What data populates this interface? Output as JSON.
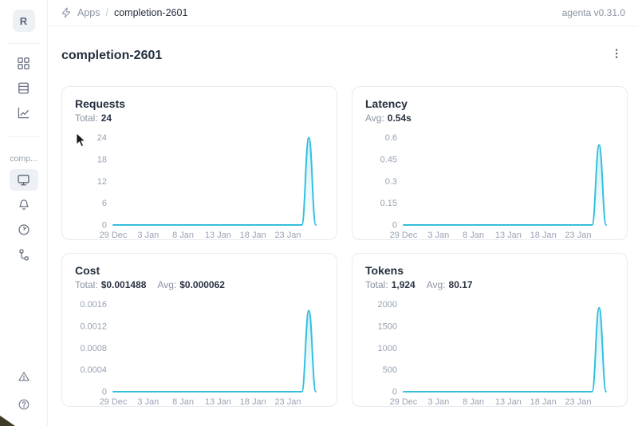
{
  "app": {
    "version_label": "agenta v0.31.0"
  },
  "topbar": {
    "breadcrumb": {
      "root": "Apps",
      "separator": "/",
      "current": "completion-2601"
    }
  },
  "sidebar": {
    "avatar_letter": "R",
    "project_label": "comp...",
    "nav_icons": [
      "apps-grid",
      "registry-list",
      "evaluations-chart"
    ],
    "project_icons": [
      "overview-monitor",
      "notifications-bell",
      "observability-gauge",
      "traces-tree"
    ],
    "footer_icons": [
      "alerts-triangle",
      "help-circle"
    ],
    "selected_icon": "overview-monitor"
  },
  "page": {
    "title": "completion-2601"
  },
  "colors": {
    "line": "#35bfdd",
    "area_top": "rgba(53,191,221,0.26)",
    "text_dark": "#243040",
    "text_gray": "#98a2b3",
    "border": "#e7eaee"
  },
  "chart_data": [
    {
      "type": "area",
      "title": "Requests",
      "stats": [
        {
          "label": "Total:",
          "value": "24"
        }
      ],
      "x_tick_labels": [
        "29 Dec",
        "3 Jan",
        "8 Jan",
        "13 Jan",
        "18 Jan",
        "23 Jan"
      ],
      "x_tick_indices": [
        0,
        5,
        10,
        15,
        20,
        25
      ],
      "y_tick_values": [
        0,
        6,
        12,
        18,
        24
      ],
      "y_tick_labels": [
        "0",
        "6",
        "12",
        "18",
        "24"
      ],
      "ylim": [
        0,
        25
      ],
      "values": [
        0,
        0,
        0,
        0,
        0,
        0,
        0,
        0,
        0,
        0,
        0,
        0,
        0,
        0,
        0,
        0,
        0,
        0,
        0,
        0,
        0,
        0,
        0,
        0,
        0,
        0,
        0,
        0,
        24,
        0
      ]
    },
    {
      "type": "area",
      "title": "Latency",
      "stats": [
        {
          "label": "Avg:",
          "value": "0.54s"
        }
      ],
      "x_tick_labels": [
        "29 Dec",
        "3 Jan",
        "8 Jan",
        "13 Jan",
        "18 Jan",
        "23 Jan"
      ],
      "x_tick_indices": [
        0,
        5,
        10,
        15,
        20,
        25
      ],
      "y_tick_values": [
        0,
        0.15,
        0.3,
        0.45,
        0.6
      ],
      "y_tick_labels": [
        "0",
        "0.15",
        "0.3",
        "0.45",
        "0.6"
      ],
      "ylim": [
        0,
        0.625
      ],
      "values": [
        0,
        0,
        0,
        0,
        0,
        0,
        0,
        0,
        0,
        0,
        0,
        0,
        0,
        0,
        0,
        0,
        0,
        0,
        0,
        0,
        0,
        0,
        0,
        0,
        0,
        0,
        0,
        0,
        0.55,
        0
      ]
    },
    {
      "type": "area",
      "title": "Cost",
      "stats": [
        {
          "label": "Total:",
          "value": "$0.001488"
        },
        {
          "label": "Avg:",
          "value": "$0.000062"
        }
      ],
      "x_tick_labels": [
        "29 Dec",
        "3 Jan",
        "8 Jan",
        "13 Jan",
        "18 Jan",
        "23 Jan"
      ],
      "x_tick_indices": [
        0,
        5,
        10,
        15,
        20,
        25
      ],
      "y_tick_values": [
        0,
        0.0004,
        0.0008,
        0.0012,
        0.0016
      ],
      "y_tick_labels": [
        "0",
        "0.0004",
        "0.0008",
        "0.0012",
        "0.0016"
      ],
      "ylim": [
        0,
        0.001667
      ],
      "values": [
        0,
        0,
        0,
        0,
        0,
        0,
        0,
        0,
        0,
        0,
        0,
        0,
        0,
        0,
        0,
        0,
        0,
        0,
        0,
        0,
        0,
        0,
        0,
        0,
        0,
        0,
        0,
        0,
        0.00149,
        0
      ]
    },
    {
      "type": "area",
      "title": "Tokens",
      "stats": [
        {
          "label": "Total:",
          "value": "1,924"
        },
        {
          "label": "Avg:",
          "value": "80.17"
        }
      ],
      "x_tick_labels": [
        "29 Dec",
        "3 Jan",
        "8 Jan",
        "13 Jan",
        "18 Jan",
        "23 Jan"
      ],
      "x_tick_indices": [
        0,
        5,
        10,
        15,
        20,
        25
      ],
      "y_tick_values": [
        0,
        500,
        1000,
        1500,
        2000
      ],
      "y_tick_labels": [
        "0",
        "500",
        "1000",
        "1500",
        "2000"
      ],
      "ylim": [
        0,
        2083
      ],
      "values": [
        0,
        0,
        0,
        0,
        0,
        0,
        0,
        0,
        0,
        0,
        0,
        0,
        0,
        0,
        0,
        0,
        0,
        0,
        0,
        0,
        0,
        0,
        0,
        0,
        0,
        0,
        0,
        0,
        1924,
        0
      ]
    }
  ]
}
